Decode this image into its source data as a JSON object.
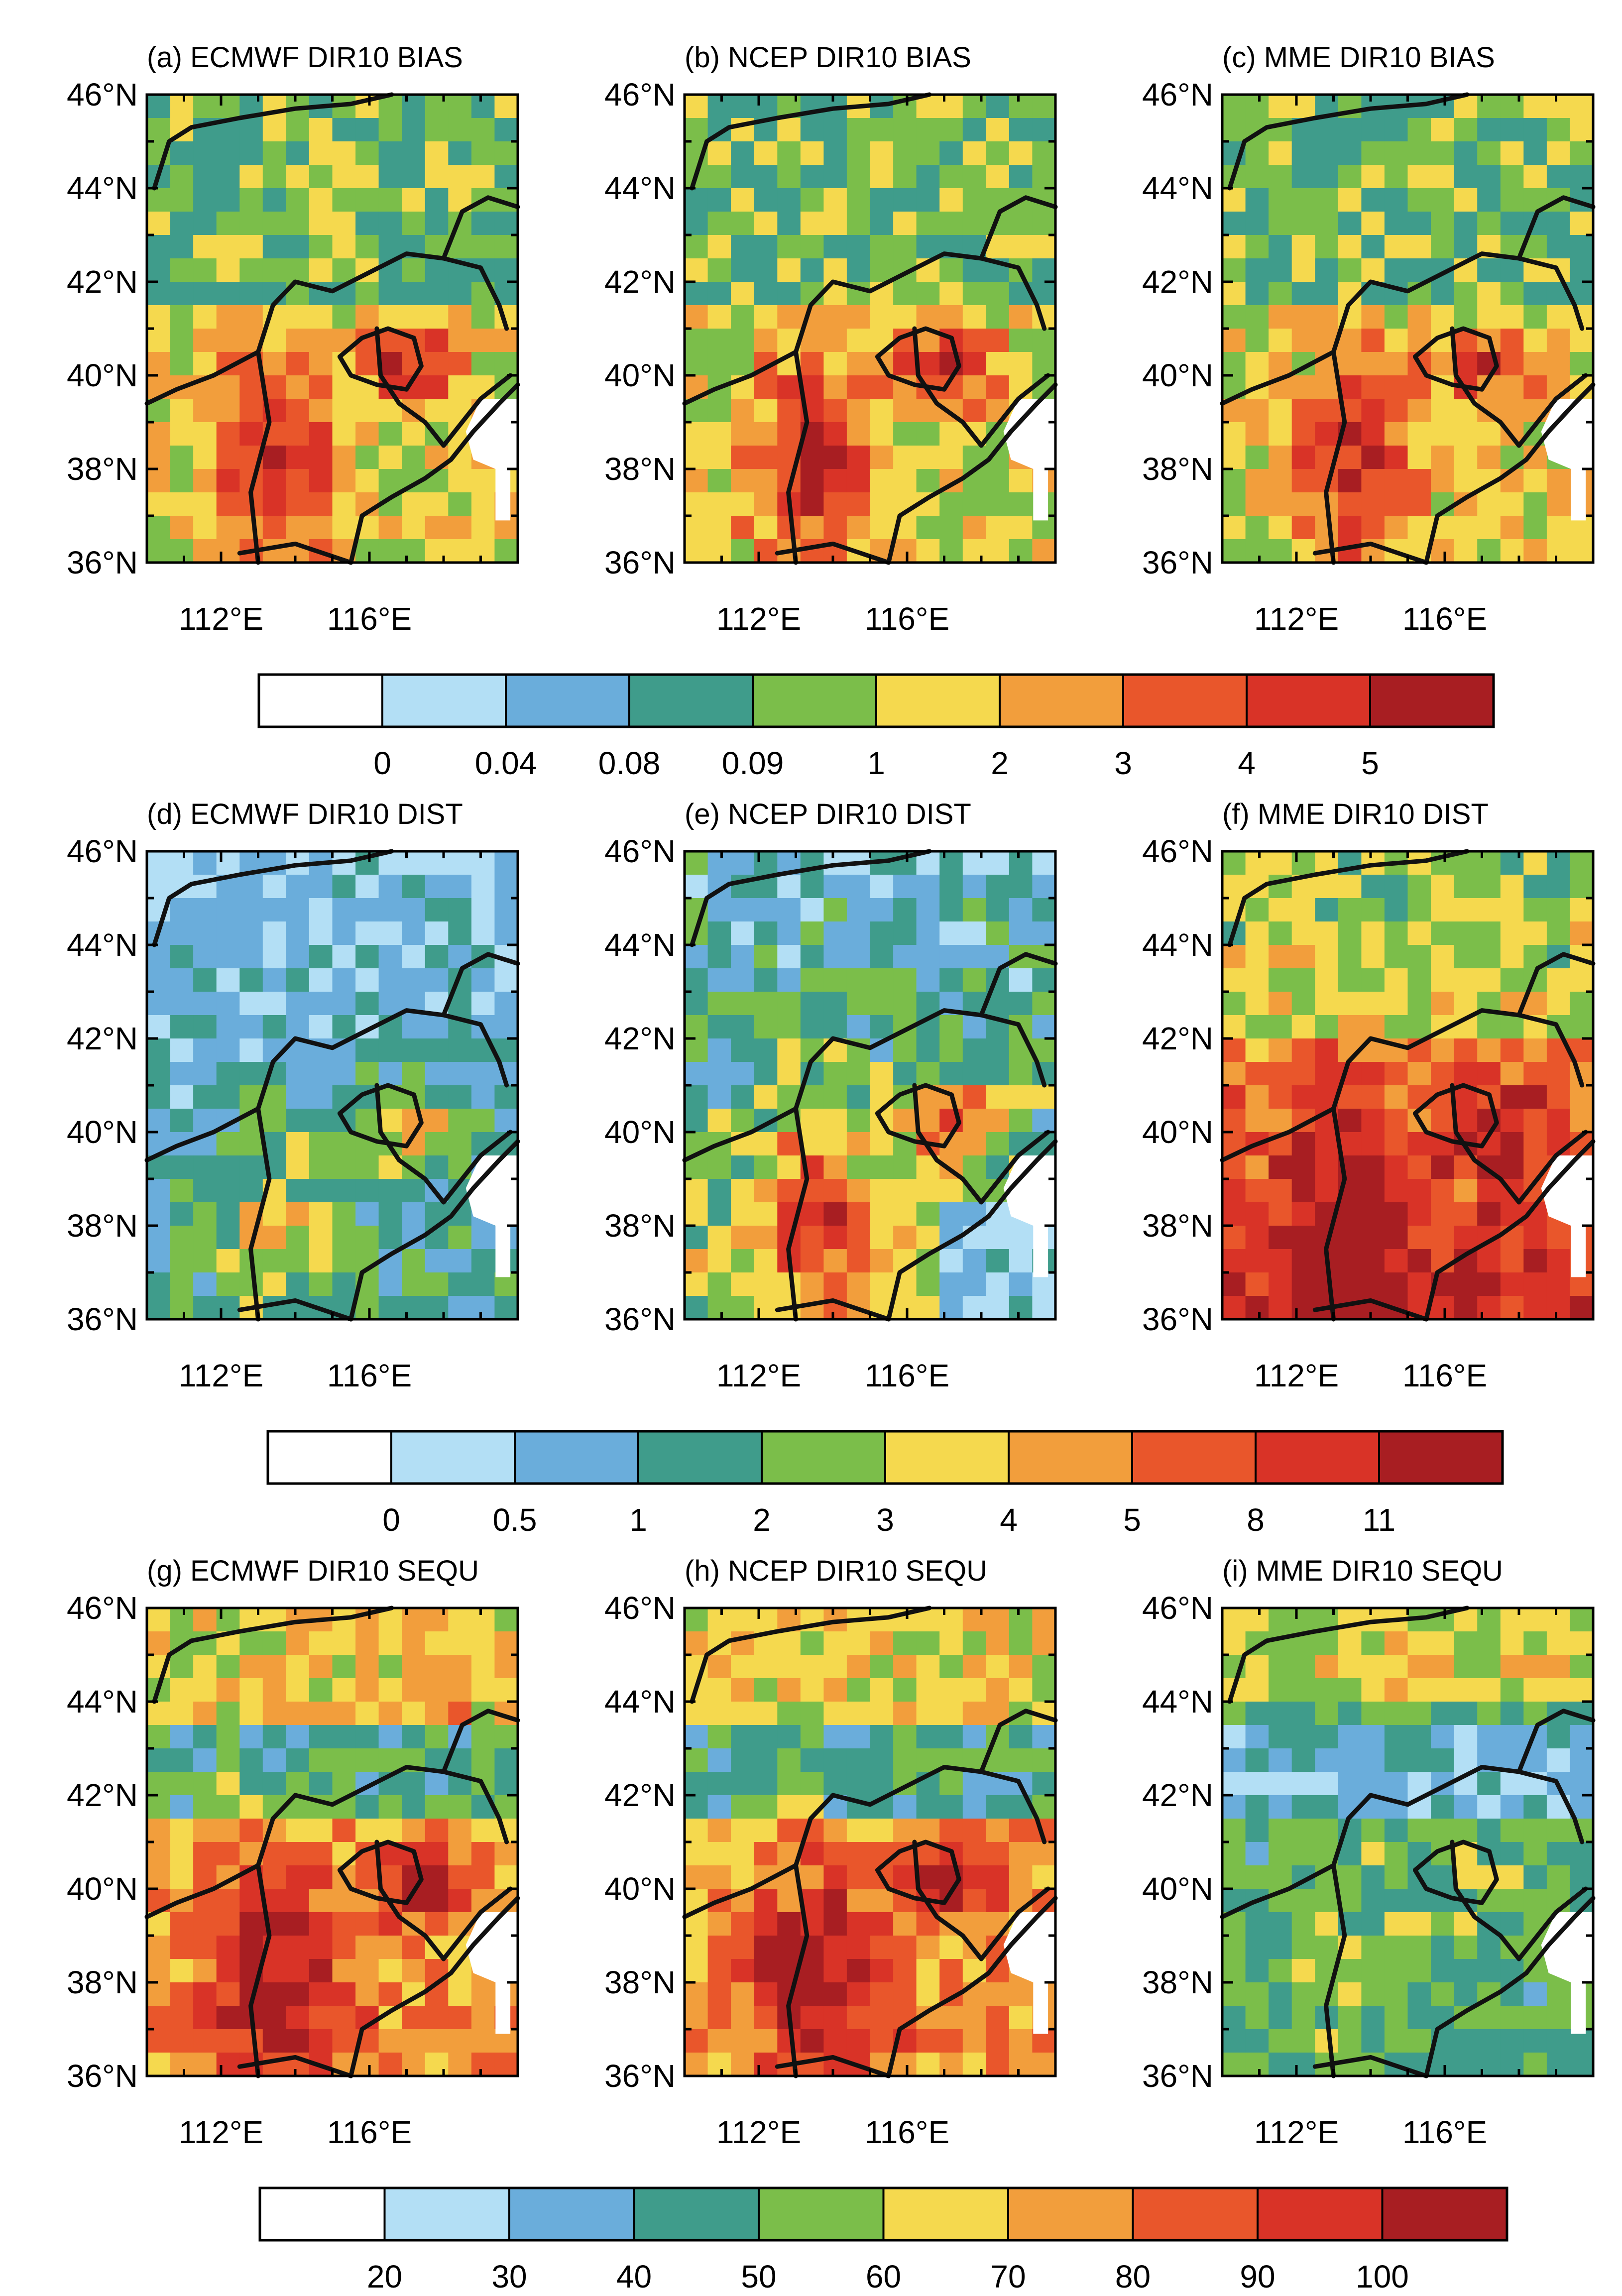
{
  "chart_data": {
    "type": "heatmap",
    "x_ticks": [
      "112°E",
      "116°E"
    ],
    "y_ticks": [
      "46°N",
      "44°N",
      "42°N",
      "40°N",
      "38°N",
      "36°N"
    ],
    "x_range": [
      110,
      120
    ],
    "y_range": [
      36,
      46
    ],
    "colors": [
      "#ffffff",
      "#b3dff5",
      "#6aaddb",
      "#3f9c8b",
      "#7bbe4a",
      "#f5d94e",
      "#f29e3c",
      "#e9562b",
      "#d93327",
      "#a81e22"
    ],
    "rows": [
      {
        "colorbar_labels": [
          "0",
          "0.04",
          "0.08",
          "0.09",
          "1",
          "2",
          "3",
          "4",
          "5"
        ],
        "panels": [
          {
            "title": "(a) ECMWF DIR10 BIAS",
            "variant": "bias",
            "seed": 3
          },
          {
            "title": "(b) NCEP DIR10 BIAS",
            "variant": "bias",
            "seed": 11
          },
          {
            "title": "(c) MME DIR10 BIAS",
            "variant": "bias",
            "seed": 19
          }
        ]
      },
      {
        "colorbar_labels": [
          "0",
          "0.5",
          "1",
          "2",
          "3",
          "4",
          "5",
          "8",
          "11"
        ],
        "panels": [
          {
            "title": "(d) ECMWF DIR10 DIST",
            "variant": "dist_low",
            "seed": 27
          },
          {
            "title": "(e) NCEP DIR10 DIST",
            "variant": "dist_mid",
            "seed": 35
          },
          {
            "title": "(f) MME DIR10 DIST",
            "variant": "dist_high",
            "seed": 43
          }
        ]
      },
      {
        "colorbar_labels": [
          "20",
          "30",
          "40",
          "50",
          "60",
          "70",
          "80",
          "90",
          "100"
        ],
        "panels": [
          {
            "title": "(g) ECMWF DIR10 SEQU",
            "variant": "sequ_high",
            "seed": 51
          },
          {
            "title": "(h) NCEP DIR10 SEQU",
            "variant": "sequ_high",
            "seed": 59
          },
          {
            "title": "(i) MME DIR10 SEQU",
            "variant": "sequ_low",
            "seed": 67
          }
        ]
      }
    ]
  }
}
